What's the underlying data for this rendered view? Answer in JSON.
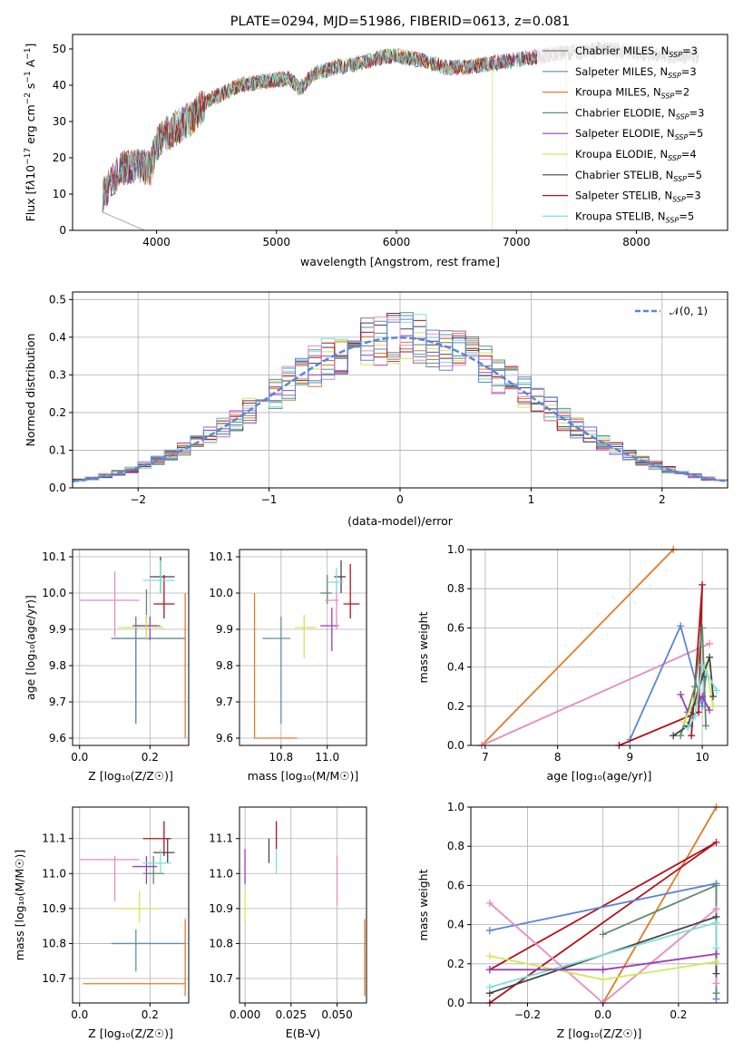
{
  "colors": {
    "c_miles": "#7b7b7b",
    "s_miles": "#5f8fa8",
    "k_miles": "#e07b28",
    "c_elodie": "#5e8c6a",
    "s_elodie": "#9b3fb5",
    "k_elodie": "#cfe85a",
    "c_stelib": "#444444",
    "s_stelib": "#b0141e",
    "k_stelib": "#7fdede",
    "normal": "#5b86d6"
  },
  "chart_data": [
    {
      "type": "line",
      "title": "PLATE=0294, MJD=51986, FIBERID=0613, z=0.081",
      "xlabel": "wavelength [Angstrom, rest frame]",
      "ylabel": "Flux [fλ10⁻¹⁷ erg cm⁻² s⁻¹ A⁻¹]",
      "xlim": [
        3300,
        8760
      ],
      "ylim": [
        0,
        54
      ],
      "xticks": [
        "4000",
        "5000",
        "6000",
        "7000",
        "8000"
      ],
      "yticks": [
        "0",
        "10",
        "20",
        "30",
        "40",
        "50"
      ],
      "spectrum_anchors": [
        [
          3550,
          10
        ],
        [
          3700,
          17
        ],
        [
          3850,
          18
        ],
        [
          3950,
          17
        ],
        [
          4000,
          24
        ],
        [
          4100,
          27
        ],
        [
          4200,
          29
        ],
        [
          4300,
          31
        ],
        [
          4400,
          35
        ],
        [
          4500,
          37
        ],
        [
          4700,
          40
        ],
        [
          4900,
          41
        ],
        [
          5100,
          42
        ],
        [
          5200,
          39
        ],
        [
          5300,
          43
        ],
        [
          5500,
          45
        ],
        [
          5700,
          46
        ],
        [
          5900,
          48
        ],
        [
          6000,
          48
        ],
        [
          6200,
          47
        ],
        [
          6400,
          45
        ],
        [
          6600,
          45
        ],
        [
          6800,
          46
        ],
        [
          7000,
          47
        ],
        [
          7200,
          48
        ],
        [
          7400,
          49
        ],
        [
          7500,
          49
        ],
        [
          7700,
          50
        ],
        [
          8000,
          49
        ],
        [
          8300,
          48
        ],
        [
          8500,
          48
        ]
      ],
      "legend_placement": "right",
      "legend": [
        "Chabrier MILES, N_SSP=3",
        "Salpeter MILES, N_SSP=3",
        "Kroupa MILES, N_SSP=2",
        "Chabrier ELODIE, N_SSP=3",
        "Salpeter ELODIE, N_SSP=5",
        "Kroupa ELODIE, N_SSP=4",
        "Chabrier STELIB, N_SSP=5",
        "Salpeter STELIB, N_SSP=3",
        "Kroupa STELIB, N_SSP=5"
      ]
    },
    {
      "type": "bar",
      "xlabel": "(data-model)/error",
      "ylabel": "Normed distribution",
      "xlim": [
        -2.5,
        2.5
      ],
      "ylim": [
        0,
        0.52
      ],
      "xticks": [
        "−2",
        "−1",
        "0",
        "1",
        "2"
      ],
      "yticks": [
        "0.0",
        "0.1",
        "0.2",
        "0.3",
        "0.4",
        "0.5"
      ],
      "legend": "𝒩(0, 1)",
      "legend_placement": "top-right",
      "grid": true,
      "histogram_bin_width": 0.1
    },
    {
      "type": "scatter",
      "xlabel": "Z [log₁₀(Z/Z☉)]",
      "ylabel": "age  [log₁₀(age/yr)]",
      "xlim": [
        -0.02,
        0.31
      ],
      "ylim": [
        9.58,
        10.12
      ],
      "xticks": [
        "0.0",
        "0.2"
      ],
      "yticks": [
        "9.6",
        "9.7",
        "9.8",
        "9.9",
        "10.0",
        "10.1"
      ],
      "points": [
        {
          "model": "k_miles",
          "x": 0.3,
          "xerr": [
            0.3,
            0.3
          ],
          "y": 9.6,
          "yerr": [
            9.6,
            10.0
          ]
        },
        {
          "model": "c_miles",
          "x": 0.16,
          "xerr": [
            0.09,
            0.3
          ],
          "y": 9.875,
          "yerr": [
            9.64,
            9.935
          ]
        },
        {
          "model": "s_miles",
          "x": 0.16,
          "xerr": [
            0.09,
            0.3
          ],
          "y": 9.875,
          "yerr": [
            9.64,
            9.935
          ]
        },
        {
          "model": "c_elodie",
          "x": 0.19,
          "xerr": [
            0.16,
            0.23
          ],
          "y": 9.91,
          "yerr": [
            9.87,
            10.01
          ]
        },
        {
          "model": "s_elodie",
          "x": 0.2,
          "xerr": [
            0.15,
            0.22
          ],
          "y": 9.91,
          "yerr": [
            9.87,
            9.935
          ]
        },
        {
          "model": "k_elodie",
          "x": 0.19,
          "xerr": [
            0.11,
            0.24
          ],
          "y": 9.905,
          "yerr": [
            9.87,
            9.94
          ]
        },
        {
          "model": "c_stelib",
          "x": 0.23,
          "xerr": [
            0.2,
            0.27
          ],
          "y": 10.045,
          "yerr": [
            10.0,
            10.1
          ]
        },
        {
          "model": "s_stelib",
          "x": 0.24,
          "xerr": [
            0.21,
            0.27
          ],
          "y": 9.97,
          "yerr": [
            9.93,
            10.05
          ]
        },
        {
          "model": "k_stelib",
          "x": 0.23,
          "xerr": [
            0.18,
            0.27
          ],
          "y": 10.035,
          "yerr": [
            10.0,
            10.09
          ]
        },
        {
          "model": "pink",
          "x": 0.1,
          "xerr": [
            0.0,
            0.17
          ],
          "y": 9.98,
          "yerr": [
            9.88,
            10.06
          ]
        }
      ]
    },
    {
      "type": "scatter",
      "xlabel": "mass [log₁₀(M/M☉)]",
      "ylabel": "",
      "xlim": [
        10.62,
        11.17
      ],
      "ylim": [
        9.58,
        10.12
      ],
      "xticks": [
        "10.8",
        "11.0"
      ],
      "yticks": [
        "9.6",
        "9.7",
        "9.8",
        "9.9",
        "10.0",
        "10.1"
      ],
      "points": [
        {
          "model": "k_miles",
          "x": 10.685,
          "xerr": [
            10.685,
            10.87
          ],
          "y": 9.6,
          "yerr": [
            9.6,
            10.0
          ]
        },
        {
          "model": "s_miles",
          "x": 10.8,
          "xerr": [
            10.72,
            10.84
          ],
          "y": 9.875,
          "yerr": [
            9.64,
            9.935
          ]
        },
        {
          "model": "k_elodie",
          "x": 10.9,
          "xerr": [
            10.86,
            10.95
          ],
          "y": 9.905,
          "yerr": [
            9.82,
            9.94
          ]
        },
        {
          "model": "s_elodie",
          "x": 11.02,
          "xerr": [
            10.97,
            11.05
          ],
          "y": 9.91,
          "yerr": [
            9.84,
            9.96
          ]
        },
        {
          "model": "c_elodie",
          "x": 11.0,
          "xerr": [
            10.97,
            11.02
          ],
          "y": 10.0,
          "yerr": [
            9.97,
            10.05
          ]
        },
        {
          "model": "pink",
          "x": 11.04,
          "xerr": [
            10.99,
            11.05
          ],
          "y": 9.98,
          "yerr": [
            9.9,
            10.02
          ]
        },
        {
          "model": "c_stelib",
          "x": 11.06,
          "xerr": [
            11.03,
            11.08
          ],
          "y": 10.045,
          "yerr": [
            10.0,
            10.09
          ]
        },
        {
          "model": "s_stelib",
          "x": 11.1,
          "xerr": [
            11.07,
            11.14
          ],
          "y": 9.97,
          "yerr": [
            9.93,
            10.08
          ]
        },
        {
          "model": "k_stelib",
          "x": 11.04,
          "xerr": [
            11.0,
            11.07
          ],
          "y": 10.03,
          "yerr": [
            10.0,
            10.07
          ]
        }
      ]
    },
    {
      "type": "line",
      "xlabel": "age  [log₁₀(age/yr)]",
      "ylabel": "mass weight",
      "xlim": [
        6.8,
        10.35
      ],
      "ylim": [
        0,
        1
      ],
      "xticks": [
        "7",
        "8",
        "9",
        "10"
      ],
      "yticks": [
        "0.0",
        "0.2",
        "0.4",
        "0.6",
        "0.8",
        "1.0"
      ],
      "grid": true,
      "series": [
        {
          "model": "k_miles",
          "points": [
            [
              6.95,
              0.0
            ],
            [
              9.6,
              1.0
            ]
          ]
        },
        {
          "model": "pink",
          "points": [
            [
              6.95,
              0.0
            ],
            [
              10.1,
              0.52
            ]
          ]
        },
        {
          "model": "normal",
          "points": [
            [
              9.0,
              0.03
            ],
            [
              9.7,
              0.61
            ],
            [
              10.0,
              0.2
            ],
            [
              10.05,
              0.35
            ]
          ]
        },
        {
          "model": "s_stelib",
          "points": [
            [
              8.85,
              0.0
            ],
            [
              9.95,
              0.17
            ],
            [
              10.0,
              0.82
            ],
            [
              9.85,
              0.05
            ]
          ]
        },
        {
          "model": "c_elodie",
          "points": [
            [
              9.7,
              0.05
            ],
            [
              9.9,
              0.3
            ],
            [
              10.0,
              0.6
            ],
            [
              10.05,
              0.1
            ]
          ]
        },
        {
          "model": "s_elodie",
          "points": [
            [
              9.7,
              0.26
            ],
            [
              9.8,
              0.17
            ],
            [
              10.0,
              0.25
            ],
            [
              10.1,
              0.18
            ]
          ]
        },
        {
          "model": "k_elodie",
          "points": [
            [
              9.75,
              0.12
            ],
            [
              9.9,
              0.24
            ],
            [
              10.05,
              0.41
            ],
            [
              10.15,
              0.2
            ]
          ]
        },
        {
          "model": "c_stelib",
          "points": [
            [
              9.6,
              0.05
            ],
            [
              9.8,
              0.1
            ],
            [
              10.0,
              0.35
            ],
            [
              10.1,
              0.45
            ],
            [
              10.15,
              0.25
            ]
          ]
        },
        {
          "model": "k_stelib",
          "points": [
            [
              9.8,
              0.09
            ],
            [
              9.9,
              0.15
            ],
            [
              10.0,
              0.41
            ],
            [
              10.2,
              0.28
            ]
          ]
        }
      ]
    },
    {
      "type": "scatter",
      "xlabel": "Z [log₁₀(Z/Z☉)]",
      "ylabel": "mass [log₁₀(M/M☉)]",
      "xlim": [
        -0.02,
        0.31
      ],
      "ylim": [
        10.63,
        11.19
      ],
      "xticks": [
        "0.0",
        "0.2"
      ],
      "yticks": [
        "10.7",
        "10.8",
        "10.9",
        "11.0",
        "11.1"
      ],
      "points": [
        {
          "model": "k_miles",
          "x": 0.3,
          "xerr": [
            0.01,
            0.3
          ],
          "y": 10.685,
          "yerr": [
            10.65,
            10.87
          ]
        },
        {
          "model": "s_miles",
          "x": 0.16,
          "xerr": [
            0.09,
            0.3
          ],
          "y": 10.8,
          "yerr": [
            10.72,
            10.84
          ]
        },
        {
          "model": "k_elodie",
          "x": 0.17,
          "xerr": [
            0.11,
            0.23
          ],
          "y": 10.9,
          "yerr": [
            10.86,
            10.95
          ]
        },
        {
          "model": "pink",
          "x": 0.1,
          "xerr": [
            0.0,
            0.17
          ],
          "y": 11.04,
          "yerr": [
            10.92,
            11.05
          ]
        },
        {
          "model": "s_elodie",
          "x": 0.19,
          "xerr": [
            0.15,
            0.22
          ],
          "y": 11.02,
          "yerr": [
            10.97,
            11.05
          ]
        },
        {
          "model": "c_elodie",
          "x": 0.21,
          "xerr": [
            0.18,
            0.24
          ],
          "y": 11.0,
          "yerr": [
            10.97,
            11.05
          ]
        },
        {
          "model": "c_stelib",
          "x": 0.25,
          "xerr": [
            0.21,
            0.27
          ],
          "y": 11.06,
          "yerr": [
            11.03,
            11.1
          ]
        },
        {
          "model": "s_stelib",
          "x": 0.24,
          "xerr": [
            0.18,
            0.26
          ],
          "y": 11.1,
          "yerr": [
            11.05,
            11.15
          ]
        },
        {
          "model": "k_stelib",
          "x": 0.23,
          "xerr": [
            0.18,
            0.26
          ],
          "y": 11.03,
          "yerr": [
            11.0,
            11.07
          ]
        }
      ]
    },
    {
      "type": "scatter",
      "xlabel": "E(B-V)",
      "ylabel": "",
      "xlim": [
        -0.003,
        0.066
      ],
      "ylim": [
        10.63,
        11.19
      ],
      "xticks": [
        "0.000",
        "0.025",
        "0.050"
      ],
      "yticks": [
        "10.7",
        "10.8",
        "10.9",
        "11.0",
        "11.1"
      ],
      "points": [
        {
          "model": "k_elodie",
          "x": 0.0,
          "y": 10.9,
          "yerr": [
            10.86,
            10.95
          ]
        },
        {
          "model": "s_elodie",
          "x": 0.0,
          "y": 11.02,
          "yerr": [
            10.97,
            11.07
          ]
        },
        {
          "model": "c_stelib",
          "x": 0.013,
          "y": 11.06,
          "yerr": [
            11.03,
            11.1
          ]
        },
        {
          "model": "s_stelib",
          "x": 0.017,
          "y": 11.1,
          "yerr": [
            11.07,
            11.15
          ]
        },
        {
          "model": "k_stelib",
          "x": 0.017,
          "y": 11.03,
          "yerr": [
            11.0,
            11.07
          ]
        },
        {
          "model": "pink",
          "x": 0.05,
          "y": 10.98,
          "yerr": [
            10.91,
            11.05
          ]
        },
        {
          "model": "k_miles",
          "x": 0.065,
          "y": 10.75,
          "yerr": [
            10.65,
            10.87
          ]
        }
      ]
    },
    {
      "type": "line",
      "xlabel": "Z [log₁₀(Z/Z☉)]",
      "ylabel": "mass weight",
      "xlim": [
        -0.35,
        0.33
      ],
      "ylim": [
        0,
        1
      ],
      "xticks": [
        "−0.2",
        "0.0",
        "0.2"
      ],
      "yticks": [
        "0.0",
        "0.2",
        "0.4",
        "0.6",
        "0.8",
        "1.0"
      ],
      "grid": true,
      "series": [
        {
          "model": "k_miles",
          "points": [
            [
              0.0,
              0.0
            ],
            [
              0.3,
              1.0
            ]
          ]
        },
        {
          "model": "s_stelib",
          "points": [
            [
              -0.3,
              0.0
            ],
            [
              0.3,
              0.82
            ],
            [
              -0.3,
              0.17
            ]
          ]
        },
        {
          "model": "normal",
          "points": [
            [
              -0.3,
              0.37
            ],
            [
              0.3,
              0.61
            ],
            [
              0.3,
              0.02
            ]
          ]
        },
        {
          "model": "c_elodie",
          "points": [
            [
              0.0,
              0.35
            ],
            [
              0.3,
              0.6
            ],
            [
              0.3,
              0.05
            ]
          ]
        },
        {
          "model": "pink",
          "points": [
            [
              -0.3,
              0.51
            ],
            [
              0.0,
              0.0
            ],
            [
              0.3,
              0.48
            ],
            [
              0.3,
              0.1
            ]
          ]
        },
        {
          "model": "c_stelib",
          "points": [
            [
              -0.3,
              0.05
            ],
            [
              0.3,
              0.44
            ],
            [
              0.3,
              0.15
            ]
          ]
        },
        {
          "model": "k_stelib",
          "points": [
            [
              -0.3,
              0.08
            ],
            [
              0.3,
              0.41
            ],
            [
              0.3,
              0.28
            ]
          ]
        },
        {
          "model": "k_elodie",
          "points": [
            [
              -0.3,
              0.24
            ],
            [
              0.0,
              0.12
            ],
            [
              0.3,
              0.21
            ]
          ]
        },
        {
          "model": "s_elodie",
          "points": [
            [
              -0.3,
              0.17
            ],
            [
              0.0,
              0.17
            ],
            [
              0.3,
              0.25
            ]
          ]
        }
      ]
    }
  ]
}
